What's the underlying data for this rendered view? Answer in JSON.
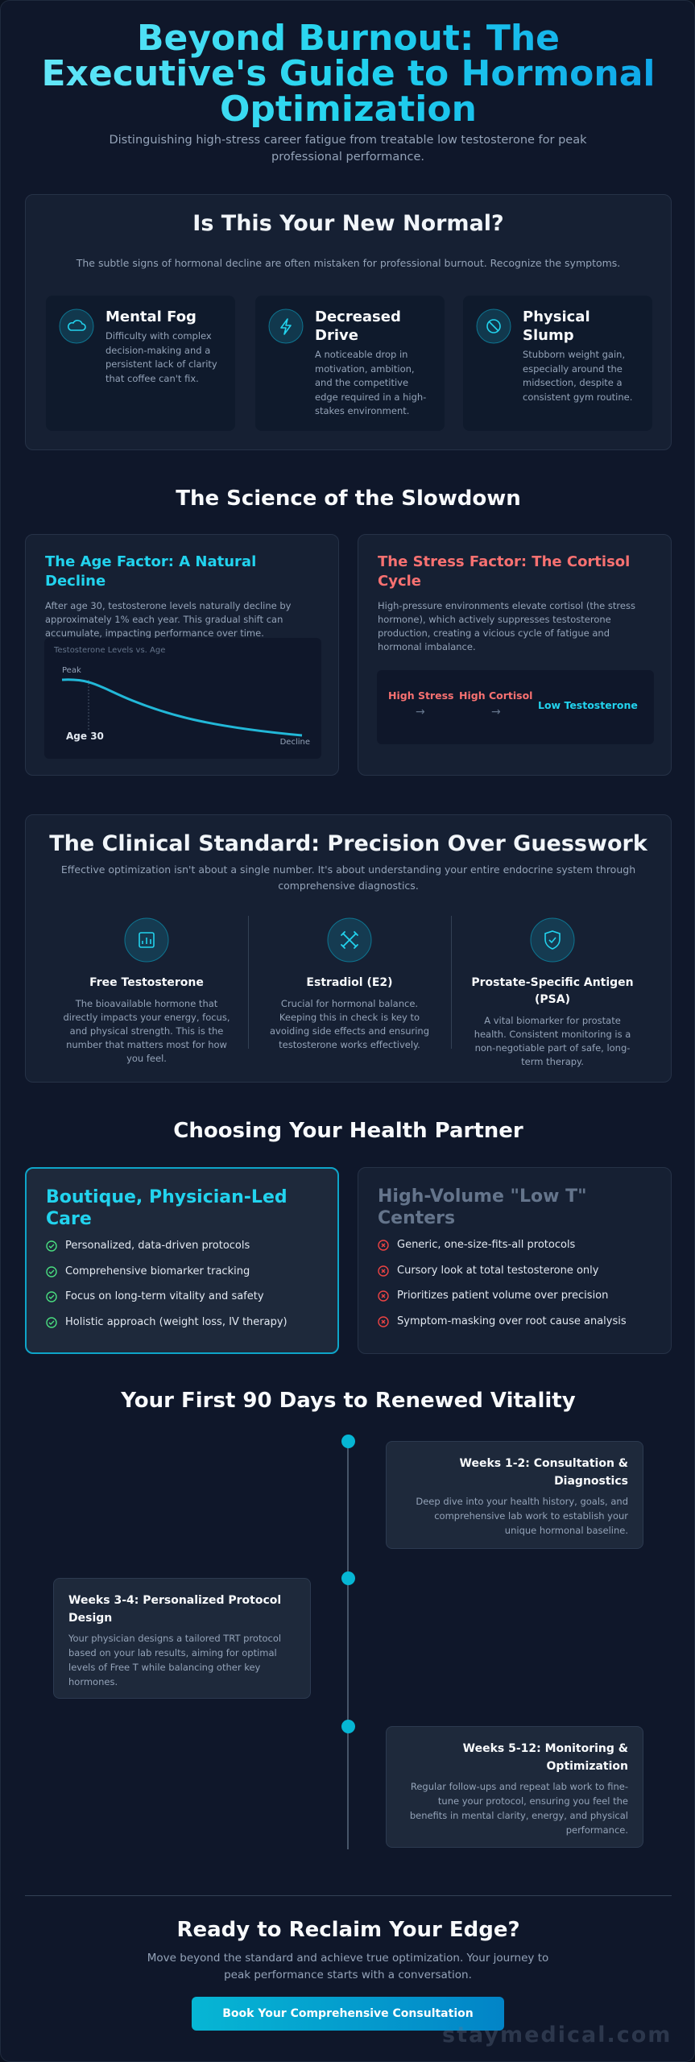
{
  "header": {
    "title": "Beyond Burnout: The Executive's Guide to Hormonal Optimization",
    "subtitle": "Distinguishing high-stress career fatigue from treatable low testosterone for peak professional performance."
  },
  "symptoms": {
    "title": "Is This Your New Normal?",
    "intro": "The subtle signs of hormonal decline are often mistaken for professional burnout. Recognize the symptoms.",
    "cards": [
      {
        "title": "Mental Fog",
        "text": "Difficulty with complex decision-making and a persistent lack of clarity that coffee can't fix."
      },
      {
        "title": "Decreased Drive",
        "text": "A noticeable drop in motivation, ambition, and the competitive edge required in a high-stakes environment."
      },
      {
        "title": "Physical Slump",
        "text": "Stubborn weight gain, especially around the midsection, despite a consistent gym routine."
      }
    ]
  },
  "science": {
    "title": "The Science of the Slowdown",
    "age": {
      "title": "The Age Factor: A Natural Decline",
      "text": "After age 30, testosterone levels naturally decline by approximately 1% each year. This gradual shift can accumulate, impacting performance over time.",
      "chart": {
        "title": "Testosterone Levels vs. Age",
        "peak": "Peak",
        "marker": "Age 30",
        "end": "Decline"
      }
    },
    "stress": {
      "title": "The Stress Factor: The Cortisol Cycle",
      "text": "High-pressure environments elevate cortisol (the stress hormone), which actively suppresses testosterone production, creating a vicious cycle of fatigue and hormonal imbalance.",
      "flow": [
        "High Stress",
        "High Cortisol",
        "Low Testosterone"
      ]
    }
  },
  "clinical": {
    "title": "The Clinical Standard: Precision Over Guesswork",
    "intro": "Effective optimization isn't about a single number. It's about understanding your entire endocrine system through comprehensive diagnostics.",
    "markers": [
      {
        "title": "Free Testosterone",
        "text": "The bioavailable hormone that directly impacts your energy, focus, and physical strength. This is the number that matters most for how you feel."
      },
      {
        "title": "Estradiol (E2)",
        "text": "Crucial for hormonal balance. Keeping this in check is key to avoiding side effects and ensuring testosterone works effectively."
      },
      {
        "title": "Prostate-Specific Antigen (PSA)",
        "text": "A vital biomarker for prostate health. Consistent monitoring is a non-negotiable part of safe, long-term therapy."
      }
    ]
  },
  "partner": {
    "title": "Choosing Your Health Partner",
    "good": {
      "title": "Boutique, Physician-Led Care",
      "items": [
        "Personalized, data-driven protocols",
        "Comprehensive biomarker tracking",
        "Focus on long-term vitality and safety",
        "Holistic approach (weight loss, IV therapy)"
      ]
    },
    "bad": {
      "title": "High-Volume \"Low T\" Centers",
      "items": [
        "Generic, one-size-fits-all protocols",
        "Cursory look at total testosterone only",
        "Prioritizes patient volume over precision",
        "Symptom-masking over root cause analysis"
      ]
    }
  },
  "timeline": {
    "title": "Your First 90 Days to Renewed Vitality",
    "steps": [
      {
        "title": "Weeks 1-2: Consultation & Diagnostics",
        "text": "Deep dive into your health history, goals, and comprehensive lab work to establish your unique hormonal baseline."
      },
      {
        "title": "Weeks 3-4: Personalized Protocol Design",
        "text": "Your physician designs a tailored TRT protocol based on your lab results, aiming for optimal levels of Free T while balancing other key hormones."
      },
      {
        "title": "Weeks 5-12: Monitoring & Optimization",
        "text": "Regular follow-ups and repeat lab work to fine-tune your protocol, ensuring you feel the benefits in mental clarity, energy, and physical performance."
      }
    ]
  },
  "cta": {
    "title": "Ready to Reclaim Your Edge?",
    "text": "Move beyond the standard and achieve true optimization. Your journey to peak performance starts with a conversation.",
    "button": "Book Your Comprehensive Consultation"
  },
  "watermark": "staymedical.com"
}
